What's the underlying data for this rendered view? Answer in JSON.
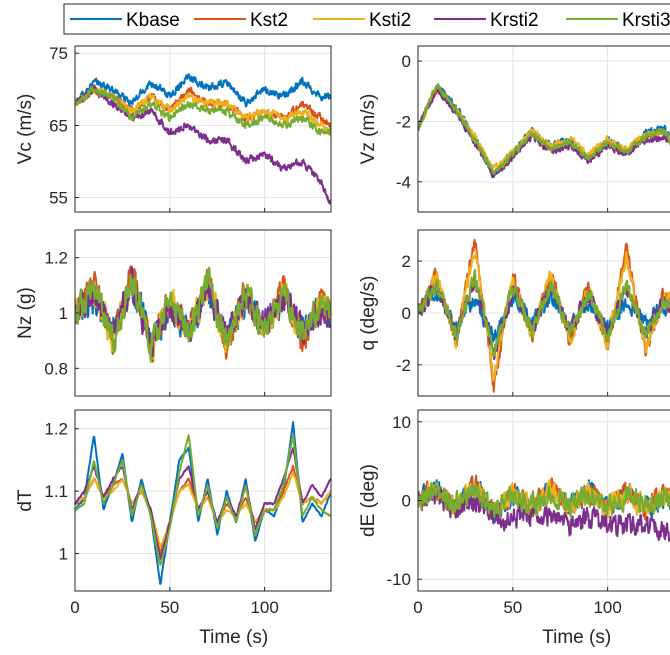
{
  "colors": {
    "Kbase": "#0072BD",
    "Kst2": "#D95319",
    "Ksti2": "#EDB120",
    "Krsti2": "#7E2F8E",
    "Krsti3": "#77AC30"
  },
  "legend": {
    "placement": "top",
    "entries": [
      "Kbase",
      "Kst2",
      "Ksti2",
      "Krsti2",
      "Krsti3"
    ]
  },
  "chart_data": [
    {
      "id": "vc",
      "type": "line",
      "ylabel": "Vc (m/s)",
      "xlabel": "",
      "xlim": [
        0,
        135
      ],
      "ylim": [
        53,
        76
      ],
      "yticks": [
        55,
        65,
        75
      ],
      "xticks": [
        0,
        50,
        100
      ],
      "grid": true,
      "x": [
        0,
        10,
        20,
        30,
        40,
        50,
        60,
        70,
        80,
        90,
        100,
        110,
        120,
        130,
        135
      ],
      "series": [
        {
          "name": "Kbase",
          "values": [
            68,
            71,
            70,
            68,
            71,
            69,
            72,
            70,
            71,
            68,
            70,
            69,
            71,
            69,
            69
          ]
        },
        {
          "name": "Kst2",
          "values": [
            68,
            70,
            69,
            67,
            69,
            67,
            70,
            68,
            68,
            66,
            67,
            66,
            68,
            66,
            65
          ]
        },
        {
          "name": "Ksti2",
          "values": [
            68,
            70,
            69,
            67,
            69,
            67,
            69,
            68,
            68,
            66,
            67,
            66,
            67,
            65,
            64
          ]
        },
        {
          "name": "Krsti2",
          "values": [
            68,
            70,
            68,
            66,
            67,
            64,
            65,
            63,
            63,
            60,
            61,
            59,
            60,
            57,
            54
          ]
        },
        {
          "name": "Krsti3",
          "values": [
            68,
            70,
            69,
            66,
            68,
            66,
            68,
            67,
            67,
            65,
            66,
            65,
            66,
            64,
            64
          ]
        }
      ]
    },
    {
      "id": "vz",
      "type": "line",
      "ylabel": "Vz (m/s)",
      "xlabel": "",
      "xlim": [
        0,
        135
      ],
      "ylim": [
        -5,
        0.5
      ],
      "yticks": [
        -4,
        -2,
        0
      ],
      "xticks": [
        0,
        50,
        100
      ],
      "grid": true,
      "x": [
        0,
        10,
        20,
        30,
        40,
        50,
        60,
        70,
        80,
        90,
        100,
        110,
        120,
        130,
        135
      ],
      "series": [
        {
          "name": "Kbase",
          "values": [
            -2.2,
            -0.8,
            -1.5,
            -2.5,
            -3.8,
            -3.0,
            -2.3,
            -2.8,
            -2.6,
            -3.3,
            -2.6,
            -3.0,
            -2.4,
            -2.2,
            -2.8
          ]
        },
        {
          "name": "Kst2",
          "values": [
            -2.2,
            -0.9,
            -1.6,
            -2.6,
            -3.7,
            -3.1,
            -2.4,
            -2.9,
            -2.7,
            -3.2,
            -2.7,
            -3.0,
            -2.5,
            -2.4,
            -2.9
          ]
        },
        {
          "name": "Ksti2",
          "values": [
            -2.2,
            -0.9,
            -1.6,
            -2.5,
            -3.6,
            -3.0,
            -2.3,
            -2.8,
            -2.6,
            -3.1,
            -2.6,
            -2.9,
            -2.4,
            -2.3,
            -2.8
          ]
        },
        {
          "name": "Krsti2",
          "values": [
            -2.2,
            -0.9,
            -1.7,
            -2.7,
            -3.8,
            -3.2,
            -2.5,
            -3.0,
            -2.8,
            -3.3,
            -2.8,
            -3.1,
            -2.6,
            -2.5,
            -3.0
          ]
        },
        {
          "name": "Krsti3",
          "values": [
            -2.2,
            -0.8,
            -1.6,
            -2.6,
            -3.7,
            -3.1,
            -2.4,
            -2.9,
            -2.7,
            -3.2,
            -2.7,
            -3.0,
            -2.5,
            -2.3,
            -2.9
          ]
        }
      ]
    },
    {
      "id": "nz",
      "type": "line",
      "ylabel": "Nz (g)",
      "xlabel": "",
      "xlim": [
        0,
        135
      ],
      "ylim": [
        0.7,
        1.3
      ],
      "yticks": [
        0.8,
        1,
        1.2
      ],
      "xticks": [
        0,
        50,
        100
      ],
      "grid": true,
      "x": [
        0,
        10,
        20,
        30,
        40,
        50,
        60,
        70,
        80,
        90,
        100,
        110,
        120,
        130,
        135
      ],
      "series": [
        {
          "name": "Kbase",
          "values": [
            1.0,
            1.05,
            0.93,
            1.1,
            0.9,
            1.02,
            0.95,
            1.08,
            0.92,
            1.04,
            0.96,
            1.06,
            0.94,
            1.02,
            1.0
          ]
        },
        {
          "name": "Kst2",
          "values": [
            1.0,
            1.1,
            0.9,
            1.15,
            0.86,
            1.05,
            0.92,
            1.12,
            0.88,
            1.08,
            0.93,
            1.1,
            0.9,
            1.04,
            1.0
          ]
        },
        {
          "name": "Ksti2",
          "values": [
            1.0,
            1.08,
            0.91,
            1.12,
            0.88,
            1.04,
            0.93,
            1.1,
            0.9,
            1.06,
            0.94,
            1.08,
            0.92,
            1.03,
            1.0
          ]
        },
        {
          "name": "Krsti2",
          "values": [
            1.0,
            1.07,
            0.92,
            1.11,
            0.89,
            1.03,
            0.94,
            1.09,
            0.91,
            1.05,
            0.95,
            1.07,
            0.93,
            1.02,
            1.0
          ]
        },
        {
          "name": "Krsti3",
          "values": [
            1.0,
            1.09,
            0.9,
            1.13,
            0.87,
            1.05,
            0.92,
            1.11,
            0.89,
            1.07,
            0.93,
            1.09,
            0.91,
            1.04,
            1.0
          ]
        }
      ]
    },
    {
      "id": "q",
      "type": "line",
      "ylabel": "q (deg/s)",
      "xlabel": "",
      "xlim": [
        0,
        135
      ],
      "ylim": [
        -3.2,
        3.2
      ],
      "yticks": [
        -2,
        0,
        2
      ],
      "xticks": [
        0,
        50,
        100
      ],
      "grid": true,
      "x": [
        0,
        10,
        20,
        30,
        40,
        50,
        60,
        70,
        80,
        90,
        100,
        110,
        120,
        130,
        135
      ],
      "series": [
        {
          "name": "Kbase",
          "values": [
            0,
            0.8,
            -0.6,
            0.5,
            -1.0,
            0.6,
            -0.4,
            0.7,
            -0.5,
            0.4,
            -0.6,
            0.5,
            -0.4,
            0.3,
            0.2
          ]
        },
        {
          "name": "Kst2",
          "values": [
            0,
            1.5,
            -1.2,
            2.8,
            -2.8,
            1.5,
            -0.9,
            1.6,
            -1.1,
            1.0,
            -1.2,
            2.5,
            -1.5,
            0.8,
            0.3
          ]
        },
        {
          "name": "Ksti2",
          "values": [
            0,
            1.4,
            -1.1,
            2.5,
            -2.5,
            1.4,
            -0.8,
            1.5,
            -1.0,
            0.9,
            -1.1,
            2.2,
            -1.4,
            0.7,
            0.3
          ]
        },
        {
          "name": "Krsti2",
          "values": [
            0,
            1.0,
            -0.8,
            1.2,
            -1.5,
            0.9,
            -0.6,
            1.0,
            -0.7,
            0.7,
            -0.8,
            1.0,
            -0.8,
            0.5,
            0.2
          ]
        },
        {
          "name": "Krsti3",
          "values": [
            0,
            1.1,
            -0.9,
            1.4,
            -1.6,
            1.0,
            -0.7,
            1.1,
            -0.8,
            0.8,
            -0.9,
            1.2,
            -0.9,
            0.6,
            0.2
          ]
        }
      ]
    },
    {
      "id": "dt",
      "type": "line",
      "ylabel": "dT",
      "xlabel": "Time (s)",
      "xlim": [
        0,
        135
      ],
      "ylim": [
        0.94,
        1.23
      ],
      "yticks": [
        1,
        1.1,
        1.2
      ],
      "xticks": [
        0,
        50,
        100
      ],
      "grid": true,
      "x": [
        0,
        5,
        10,
        15,
        20,
        25,
        30,
        35,
        40,
        45,
        50,
        55,
        60,
        65,
        70,
        75,
        80,
        85,
        90,
        95,
        100,
        105,
        110,
        115,
        120,
        125,
        130,
        135
      ],
      "series": [
        {
          "name": "Kbase",
          "values": [
            1.07,
            1.09,
            1.19,
            1.07,
            1.11,
            1.16,
            1.05,
            1.12,
            1.06,
            0.95,
            1.05,
            1.15,
            1.17,
            1.05,
            1.12,
            1.03,
            1.1,
            1.05,
            1.12,
            1.02,
            1.07,
            1.06,
            1.1,
            1.21,
            1.05,
            1.08,
            1.06,
            1.1
          ]
        },
        {
          "name": "Kst2",
          "values": [
            1.08,
            1.09,
            1.12,
            1.09,
            1.11,
            1.12,
            1.08,
            1.1,
            1.07,
            1.0,
            1.05,
            1.1,
            1.12,
            1.07,
            1.09,
            1.05,
            1.08,
            1.06,
            1.09,
            1.05,
            1.07,
            1.07,
            1.1,
            1.14,
            1.08,
            1.09,
            1.08,
            1.1
          ]
        },
        {
          "name": "Ksti2",
          "values": [
            1.08,
            1.09,
            1.12,
            1.09,
            1.1,
            1.12,
            1.08,
            1.1,
            1.07,
            1.01,
            1.05,
            1.1,
            1.11,
            1.07,
            1.09,
            1.05,
            1.07,
            1.06,
            1.08,
            1.05,
            1.07,
            1.07,
            1.09,
            1.13,
            1.08,
            1.09,
            1.08,
            1.1
          ]
        },
        {
          "name": "Krsti2",
          "values": [
            1.08,
            1.1,
            1.14,
            1.09,
            1.12,
            1.14,
            1.07,
            1.11,
            1.07,
            0.99,
            1.05,
            1.12,
            1.14,
            1.07,
            1.1,
            1.05,
            1.09,
            1.06,
            1.11,
            1.04,
            1.08,
            1.08,
            1.12,
            1.17,
            1.08,
            1.11,
            1.09,
            1.12
          ]
        },
        {
          "name": "Krsti3",
          "values": [
            1.07,
            1.08,
            1.15,
            1.08,
            1.11,
            1.15,
            1.06,
            1.11,
            1.06,
            0.98,
            1.04,
            1.13,
            1.19,
            1.06,
            1.11,
            1.04,
            1.09,
            1.05,
            1.11,
            1.03,
            1.07,
            1.07,
            1.11,
            1.19,
            1.06,
            1.09,
            1.07,
            1.06
          ]
        }
      ]
    },
    {
      "id": "de",
      "type": "line",
      "ylabel": "dE (deg)",
      "xlabel": "Time (s)",
      "xlim": [
        0,
        135
      ],
      "ylim": [
        -11.5,
        11.5
      ],
      "yticks": [
        -10,
        0,
        10
      ],
      "xticks": [
        0,
        50,
        100
      ],
      "grid": true,
      "x": [
        0,
        10,
        20,
        30,
        40,
        50,
        60,
        70,
        80,
        90,
        100,
        110,
        120,
        130,
        135
      ],
      "series": [
        {
          "name": "Kbase",
          "values": [
            0,
            1.5,
            -1,
            2,
            -2,
            1,
            -1.5,
            2,
            -1,
            1.5,
            -1,
            1,
            -1,
            0.5,
            0
          ]
        },
        {
          "name": "Kst2",
          "values": [
            0,
            1.5,
            -1,
            2,
            -1.5,
            1,
            -1,
            1.5,
            -1,
            1,
            -1,
            1,
            -1,
            0.5,
            0
          ]
        },
        {
          "name": "Ksti2",
          "values": [
            0,
            1.5,
            -1,
            1.8,
            -1.5,
            1,
            -1,
            1.5,
            -1,
            1,
            -1,
            1,
            -1,
            0.5,
            0
          ]
        },
        {
          "name": "Krsti2",
          "values": [
            0,
            0.5,
            -1,
            0,
            -2,
            -2.5,
            -1.5,
            -2,
            -3,
            -2,
            -3,
            -3.5,
            -3,
            -4,
            -4.5
          ]
        },
        {
          "name": "Krsti3",
          "values": [
            0,
            1,
            -0.5,
            1,
            -1,
            0.5,
            -0.5,
            1,
            -0.5,
            0.5,
            -0.5,
            0.5,
            -0.5,
            0.2,
            0
          ]
        }
      ]
    }
  ]
}
